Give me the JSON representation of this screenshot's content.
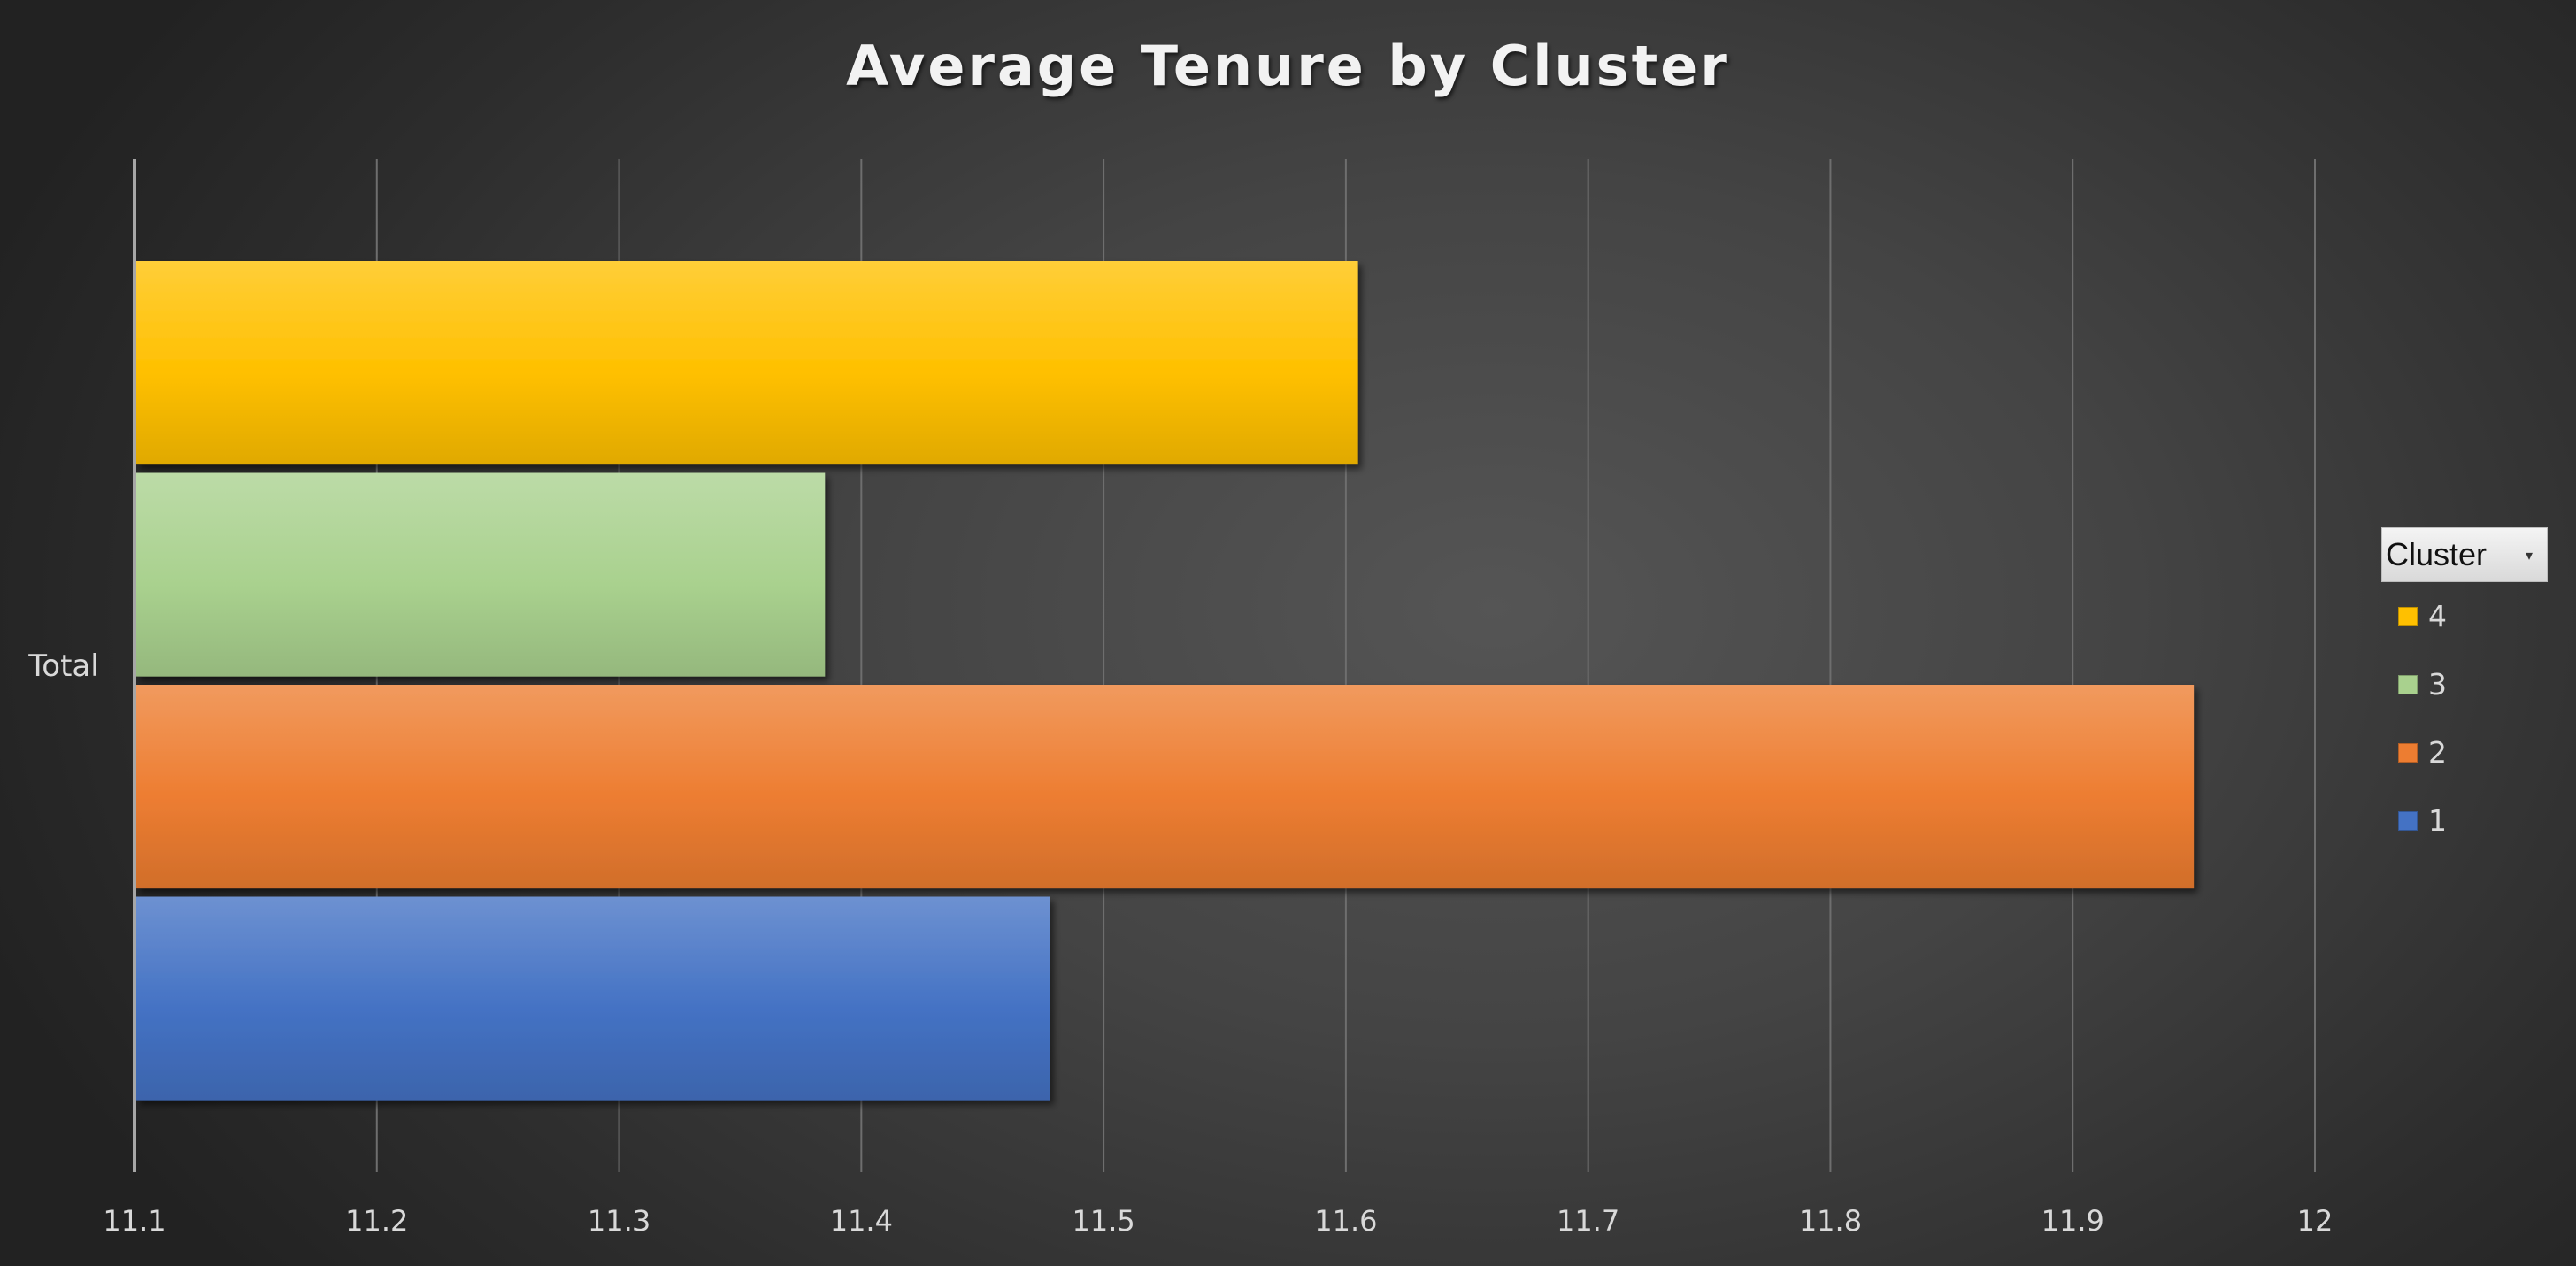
{
  "chart_data": {
    "type": "bar",
    "orientation": "horizontal",
    "title": "Average Tenure by Cluster",
    "xlabel": "",
    "ylabel": "",
    "categories": [
      "Total"
    ],
    "xlim": [
      11.1,
      12
    ],
    "x_ticks": [
      "11.1",
      "11.2",
      "11.3",
      "11.4",
      "11.5",
      "11.6",
      "11.7",
      "11.8",
      "11.9",
      "12"
    ],
    "grid": true,
    "legend_position": "right",
    "legend_title": "Cluster",
    "series": [
      {
        "name": "4",
        "values": [
          11.605
        ],
        "color": "#ffc000"
      },
      {
        "name": "3",
        "values": [
          11.385
        ],
        "color": "#a9d18e"
      },
      {
        "name": "2",
        "values": [
          11.95
        ],
        "color": "#ed7d31"
      },
      {
        "name": "1",
        "values": [
          11.478
        ],
        "color": "#4472c4"
      }
    ]
  }
}
